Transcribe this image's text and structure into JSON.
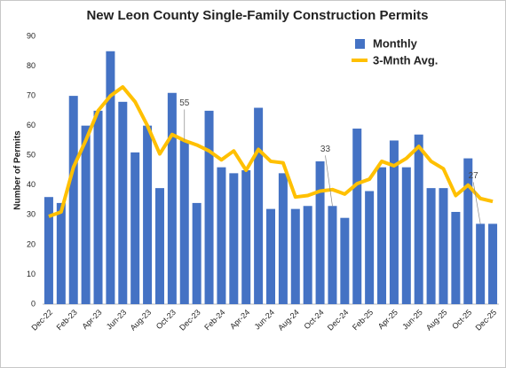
{
  "chart_data": {
    "type": "bar_line",
    "title": "New Leon County Single-Family Construction Permits",
    "y_label": "Number of Permits",
    "categories": [
      "Dec-22",
      null,
      "Feb-23",
      null,
      "Apr-23",
      null,
      "Jun-23",
      null,
      "Aug-23",
      null,
      "Oct-23",
      null,
      "Dec-23",
      null,
      "Feb-24",
      null,
      "Apr-24",
      null,
      "Jun-24",
      null,
      "Aug-24",
      null,
      "Oct-24",
      null,
      "Dec-24",
      null,
      "Feb-25",
      null,
      "Apr-25",
      null,
      "Jun-25",
      null,
      "Aug-25",
      null,
      "Oct-25",
      null,
      "Dec-25"
    ],
    "series": [
      {
        "name": "Monthly",
        "type": "bar",
        "color": "#4472c4",
        "values": [
          36,
          34,
          70,
          60,
          65,
          85,
          68,
          51,
          60,
          39,
          71,
          55,
          34,
          65,
          46,
          44,
          45,
          66,
          32,
          44,
          32,
          33,
          48,
          33,
          29,
          59,
          38,
          46,
          55,
          46,
          57,
          39,
          39,
          31,
          49,
          27,
          27
        ]
      },
      {
        "name": "3-Mnth Avg.",
        "type": "line",
        "color": "#ffc000",
        "values": [
          29.5,
          31,
          46,
          55,
          65,
          70,
          73,
          68,
          60,
          50.5,
          57,
          55,
          53.5,
          51.5,
          48.5,
          51.5,
          45,
          52,
          48,
          47.5,
          36,
          36.5,
          38,
          38.5,
          37,
          40.5,
          42,
          48,
          46.5,
          49,
          53,
          48,
          45.5,
          36.5,
          40,
          35.5,
          34.5
        ]
      }
    ],
    "labeled_points": [
      11,
      23,
      35
    ],
    "ylim": [
      0,
      90
    ],
    "yticks": [
      0,
      10,
      20,
      30,
      40,
      50,
      60,
      70,
      80,
      90
    ],
    "grid": false,
    "legend": "upper right"
  }
}
